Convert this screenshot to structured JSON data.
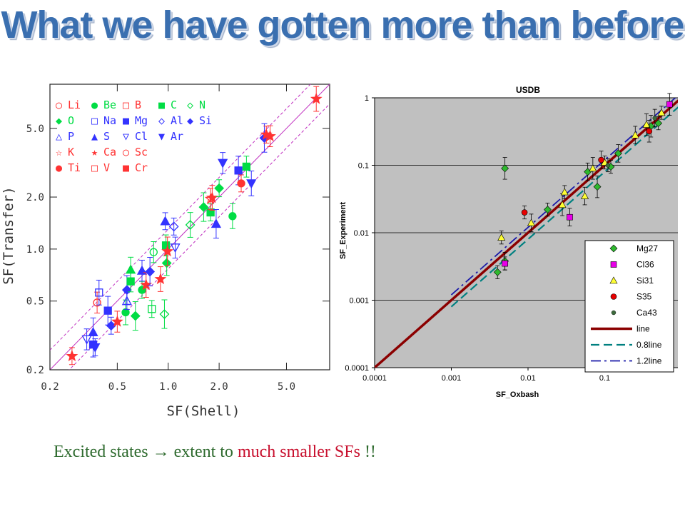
{
  "slide": {
    "title": "What we have gotten more than before",
    "caption_green": "Excited states ",
    "caption_arrow": "→",
    "caption_green2": " extent to ",
    "caption_red": "much smaller SFs",
    "caption_end": " !!"
  },
  "chart_data": [
    {
      "type": "scatter",
      "xlabel": "SF(Shell)",
      "ylabel": "SF(Transfer)",
      "log_x": true,
      "log_y": true,
      "xlim": [
        0.2,
        9.0
      ],
      "ylim": [
        0.2,
        9.0
      ],
      "x_ticks": [
        "0.2",
        "0.5",
        "1.0",
        "2.0",
        "5.0"
      ],
      "y_ticks": [
        "0.2",
        "0.5",
        "1.0",
        "2.0",
        "5.0"
      ],
      "legend_position": "top-left",
      "legend": [
        [
          {
            "sym": "○",
            "label": "Li",
            "color": "#ff3333"
          },
          {
            "sym": "●",
            "label": "Be",
            "color": "#00dd44"
          },
          {
            "sym": "□",
            "label": "B",
            "color": "#ff3333"
          },
          {
            "sym": "■",
            "label": "C",
            "color": "#00dd44"
          },
          {
            "sym": "◇",
            "label": "N",
            "color": "#00dd44"
          }
        ],
        [
          {
            "sym": "◆",
            "label": "O",
            "color": "#00dd44"
          },
          {
            "sym": "□",
            "label": "Na",
            "color": "#3333ff"
          },
          {
            "sym": "■",
            "label": "Mg",
            "color": "#3333ff"
          },
          {
            "sym": "◇",
            "label": "Al",
            "color": "#3333ff"
          },
          {
            "sym": "◆",
            "label": "Si",
            "color": "#3333ff"
          }
        ],
        [
          {
            "sym": "△",
            "label": "P",
            "color": "#3333ff"
          },
          {
            "sym": "▲",
            "label": "S",
            "color": "#3333ff"
          },
          {
            "sym": "▽",
            "label": "Cl",
            "color": "#3333ff"
          },
          {
            "sym": "▼",
            "label": "Ar",
            "color": "#3333ff"
          }
        ],
        [
          {
            "sym": "☆",
            "label": "K",
            "color": "#ff3333"
          },
          {
            "sym": "★",
            "label": "Ca",
            "color": "#ff3333"
          },
          {
            "sym": "○",
            "label": "Sc",
            "color": "#ff3333"
          }
        ],
        [
          {
            "sym": "●",
            "label": "Ti",
            "color": "#ff3333"
          },
          {
            "sym": "□",
            "label": "V",
            "color": "#ff3333"
          },
          {
            "sym": "■",
            "label": "Cr",
            "color": "#ff3333"
          }
        ]
      ],
      "points": [
        {
          "x": 0.27,
          "y": 0.24,
          "s": "star",
          "c": "#ff3333"
        },
        {
          "x": 0.33,
          "y": 0.3,
          "s": "triD",
          "c": "#3333ff",
          "open": true
        },
        {
          "x": 0.36,
          "y": 0.28,
          "s": "sq",
          "c": "#3333ff"
        },
        {
          "x": 0.36,
          "y": 0.33,
          "s": "tri",
          "c": "#3333ff"
        },
        {
          "x": 0.37,
          "y": 0.27,
          "s": "triD",
          "c": "#3333ff"
        },
        {
          "x": 0.38,
          "y": 0.49,
          "s": "circ",
          "c": "#ff3333",
          "open": true
        },
        {
          "x": 0.39,
          "y": 0.56,
          "s": "sq",
          "c": "#3333ff",
          "open": true
        },
        {
          "x": 0.44,
          "y": 0.44,
          "s": "sq",
          "c": "#3333ff"
        },
        {
          "x": 0.46,
          "y": 0.36,
          "s": "dia",
          "c": "#3333ff"
        },
        {
          "x": 0.5,
          "y": 0.38,
          "s": "star",
          "c": "#ff3333"
        },
        {
          "x": 0.56,
          "y": 0.43,
          "s": "circ",
          "c": "#00dd44"
        },
        {
          "x": 0.57,
          "y": 0.58,
          "s": "dia",
          "c": "#3333ff"
        },
        {
          "x": 0.57,
          "y": 0.5,
          "s": "tri",
          "c": "#3333ff",
          "open": true
        },
        {
          "x": 0.6,
          "y": 0.65,
          "s": "sq",
          "c": "#00dd44"
        },
        {
          "x": 0.6,
          "y": 0.76,
          "s": "tri",
          "c": "#00dd44"
        },
        {
          "x": 0.64,
          "y": 0.41,
          "s": "dia",
          "c": "#00dd44"
        },
        {
          "x": 0.7,
          "y": 0.58,
          "s": "circ",
          "c": "#00dd44"
        },
        {
          "x": 0.7,
          "y": 0.75,
          "s": "tri",
          "c": "#3333ff"
        },
        {
          "x": 0.74,
          "y": 0.62,
          "s": "star",
          "c": "#ff3333"
        },
        {
          "x": 0.78,
          "y": 0.74,
          "s": "dia",
          "c": "#3333ff"
        },
        {
          "x": 0.8,
          "y": 0.45,
          "s": "sq",
          "c": "#00dd44",
          "open": true
        },
        {
          "x": 0.82,
          "y": 0.96,
          "s": "circ",
          "c": "#00dd44",
          "open": true
        },
        {
          "x": 0.9,
          "y": 0.67,
          "s": "star",
          "c": "#ff3333"
        },
        {
          "x": 0.95,
          "y": 0.42,
          "s": "dia",
          "c": "#00dd44",
          "open": true
        },
        {
          "x": 0.96,
          "y": 1.45,
          "s": "tri",
          "c": "#3333ff"
        },
        {
          "x": 0.97,
          "y": 1.05,
          "s": "sq",
          "c": "#00dd44"
        },
        {
          "x": 0.98,
          "y": 0.83,
          "s": "dia",
          "c": "#00dd44"
        },
        {
          "x": 0.99,
          "y": 0.97,
          "s": "star",
          "c": "#ff3333"
        },
        {
          "x": 1.08,
          "y": 1.35,
          "s": "dia",
          "c": "#3333ff",
          "open": true
        },
        {
          "x": 1.1,
          "y": 1.02,
          "s": "triD",
          "c": "#3333ff",
          "open": true
        },
        {
          "x": 1.35,
          "y": 1.38,
          "s": "dia",
          "c": "#00dd44",
          "open": true
        },
        {
          "x": 1.62,
          "y": 1.75,
          "s": "dia",
          "c": "#00dd44"
        },
        {
          "x": 1.78,
          "y": 1.63,
          "s": "sq",
          "c": "#00dd44"
        },
        {
          "x": 1.78,
          "y": 1.95,
          "s": "star",
          "c": "#ff3333",
          "open": true
        },
        {
          "x": 1.82,
          "y": 1.98,
          "s": "star",
          "c": "#ff3333"
        },
        {
          "x": 1.92,
          "y": 1.4,
          "s": "tri",
          "c": "#3333ff"
        },
        {
          "x": 2.0,
          "y": 2.25,
          "s": "dia",
          "c": "#00dd44"
        },
        {
          "x": 2.1,
          "y": 3.15,
          "s": "triD",
          "c": "#3333ff"
        },
        {
          "x": 2.4,
          "y": 1.55,
          "s": "circ",
          "c": "#00dd44"
        },
        {
          "x": 2.6,
          "y": 2.85,
          "s": "sq",
          "c": "#3333ff"
        },
        {
          "x": 2.7,
          "y": 2.4,
          "s": "circ",
          "c": "#ff3333"
        },
        {
          "x": 2.9,
          "y": 3.0,
          "s": "sq",
          "c": "#00dd44"
        },
        {
          "x": 3.1,
          "y": 2.4,
          "s": "triD",
          "c": "#3333ff"
        },
        {
          "x": 3.7,
          "y": 4.4,
          "s": "dia",
          "c": "#3333ff"
        },
        {
          "x": 3.8,
          "y": 4.6,
          "s": "star",
          "c": "#ff3333"
        },
        {
          "x": 4.0,
          "y": 4.5,
          "s": "star",
          "c": "#ff3333"
        },
        {
          "x": 7.5,
          "y": 7.4,
          "s": "star",
          "c": "#ff3333"
        }
      ]
    },
    {
      "type": "scatter",
      "title": "USDB",
      "xlabel": "SF_Oxbash",
      "ylabel": "SF_Experiment",
      "log_x": true,
      "log_y": true,
      "xlim": [
        0.0001,
        1
      ],
      "ylim": [
        0.0001,
        1
      ],
      "x_ticks": [
        "0.0001",
        "0.001",
        "0.01",
        "0.1",
        "1"
      ],
      "y_ticks": [
        "0.0001",
        "0.001",
        "0.01",
        "0.1",
        "1"
      ],
      "grid": true,
      "legend_position": "bottom-right",
      "series": [
        {
          "name": "Mg27",
          "marker": "diamond",
          "color": "#2eb82e",
          "points": [
            [
              0.004,
              0.0026
            ],
            [
              0.005,
              0.0038
            ],
            [
              0.005,
              0.09
            ],
            [
              0.018,
              0.022
            ],
            [
              0.06,
              0.08
            ],
            [
              0.08,
              0.048
            ],
            [
              0.12,
              0.095
            ],
            [
              0.15,
              0.15
            ],
            [
              0.4,
              0.38
            ],
            [
              0.5,
              0.42
            ]
          ]
        },
        {
          "name": "Cl36",
          "marker": "square",
          "color": "#e800e8",
          "points": [
            [
              0.005,
              0.0035
            ],
            [
              0.035,
              0.017
            ],
            [
              0.7,
              0.8
            ]
          ]
        },
        {
          "name": "Si31",
          "marker": "triangle",
          "color": "#ffff33",
          "points": [
            [
              0.0045,
              0.0085
            ],
            [
              0.011,
              0.014
            ],
            [
              0.028,
              0.026
            ],
            [
              0.03,
              0.04
            ],
            [
              0.055,
              0.035
            ],
            [
              0.07,
              0.09
            ],
            [
              0.1,
              0.11
            ],
            [
              0.25,
              0.28
            ],
            [
              0.35,
              0.4
            ],
            [
              0.55,
              0.6
            ]
          ]
        },
        {
          "name": "S35",
          "marker": "circle",
          "color": "#e60000",
          "points": [
            [
              0.009,
              0.02
            ],
            [
              0.09,
              0.12
            ],
            [
              0.38,
              0.32
            ]
          ]
        },
        {
          "name": "Ca43",
          "marker": "dot",
          "color": "#3d6b3d",
          "points": [
            [
              0.11,
              0.1
            ],
            [
              0.45,
              0.5
            ]
          ]
        }
      ],
      "lines": [
        {
          "name": "line",
          "factor": 1.0,
          "color": "#8b0000",
          "style": "solid",
          "range": [
            0.0001,
            1
          ]
        },
        {
          "name": "0.8line",
          "factor": 0.8,
          "color": "#008080",
          "style": "dashed",
          "range": [
            0.001,
            1
          ]
        },
        {
          "name": "1.2line",
          "factor": 1.2,
          "color": "#1a1aa8",
          "style": "dashdot",
          "range": [
            0.001,
            1
          ]
        }
      ]
    }
  ]
}
